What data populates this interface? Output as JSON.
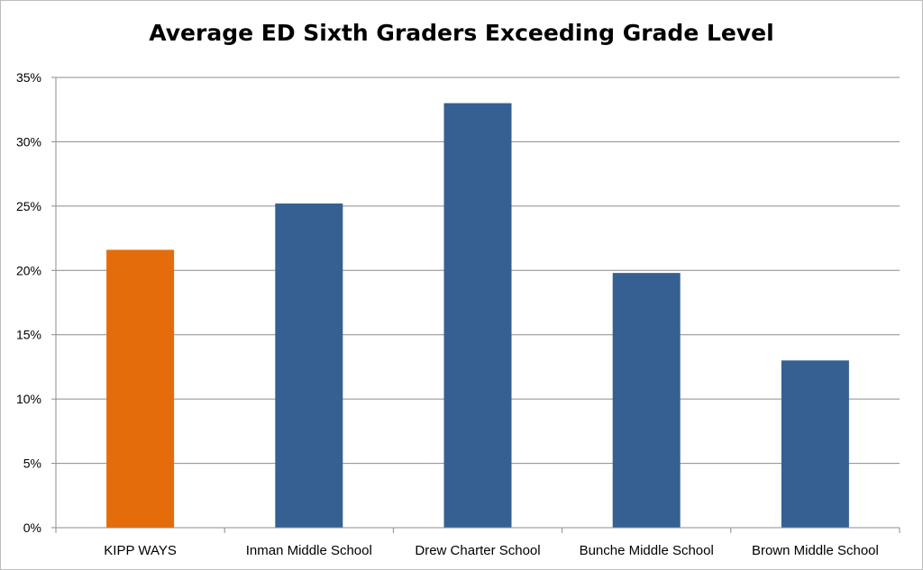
{
  "chart_data": {
    "type": "bar",
    "title": "Average ED Sixth Graders Exceeding Grade Level",
    "xlabel": "",
    "ylabel": "",
    "categories": [
      "KIPP WAYS",
      "Inman Middle School",
      "Drew Charter School",
      "Bunche Middle School",
      "Brown Middle School"
    ],
    "values": [
      21.6,
      25.2,
      33.0,
      19.8,
      13.0
    ],
    "colors": [
      "#E46C0A",
      "#366092",
      "#366092",
      "#366092",
      "#366092"
    ],
    "ylim": [
      0,
      35
    ],
    "yticks": [
      0,
      5,
      10,
      15,
      20,
      25,
      30,
      35
    ],
    "ytick_labels": [
      "0%",
      "5%",
      "10%",
      "15%",
      "20%",
      "25%",
      "30%",
      "35%"
    ],
    "grid": true,
    "legend": "none"
  }
}
